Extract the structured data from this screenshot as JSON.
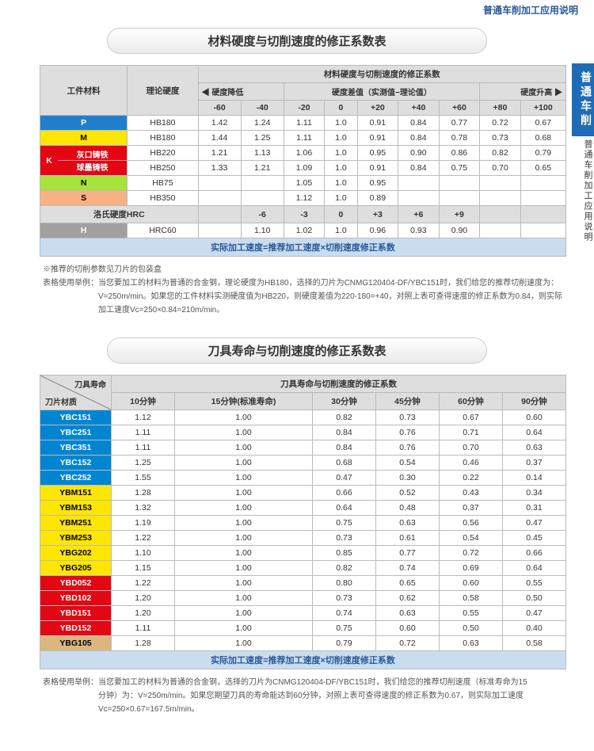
{
  "page": {
    "top_header": "普通车削加工应用说明",
    "side_tab": "普通车削",
    "side_text": "普通车削加工应用说明"
  },
  "table1": {
    "title": "材料硬度与切削速度的修正系数表",
    "header_top": "材料硬度与切削速度的修正系数",
    "col_workpiece": "工件材料",
    "col_hardness": "理论硬度",
    "hardness_low": "硬度降低",
    "hardness_diff": "硬度差值（实测值−理论值）",
    "hardness_high": "硬度升高",
    "cols": [
      "-60",
      "-40",
      "-20",
      "0",
      "+20",
      "+40",
      "+60",
      "+80",
      "+100"
    ],
    "rows": [
      {
        "mat_class": "row-P",
        "mat": "P",
        "hard": "HB180",
        "v": [
          "1.42",
          "1.24",
          "1.11",
          "1.0",
          "0.91",
          "0.84",
          "0.77",
          "0.72",
          "0.67"
        ]
      },
      {
        "mat_class": "row-M",
        "mat": "M",
        "hard": "HB180",
        "v": [
          "1.44",
          "1.25",
          "1.11",
          "1.0",
          "0.91",
          "0.84",
          "0.78",
          "0.73",
          "0.68"
        ]
      },
      {
        "mat_class": "row-K-a",
        "mat": "K",
        "mat_sub": "灰口铸铁",
        "hard": "HB220",
        "v": [
          "1.21",
          "1.13",
          "1.06",
          "1.0",
          "0.95",
          "0.90",
          "0.86",
          "0.82",
          "0.79"
        ]
      },
      {
        "mat_class": "row-K-b",
        "mat": "",
        "mat_sub": "球墨铸铁",
        "hard": "HB250",
        "v": [
          "1.33",
          "1.21",
          "1.09",
          "1.0",
          "0.91",
          "0.84",
          "0.75",
          "0.70",
          "0.65"
        ]
      },
      {
        "mat_class": "row-N",
        "mat": "N",
        "hard": "HB75",
        "v": [
          "",
          "",
          "1.05",
          "1.0",
          "0.95",
          "",
          "",
          "",
          ""
        ]
      },
      {
        "mat_class": "row-S",
        "mat": "S",
        "hard": "HB350",
        "v": [
          "",
          "",
          "1.12",
          "1.0",
          "0.89",
          "",
          "",
          "",
          ""
        ]
      }
    ],
    "hrc_label": "洛氏硬度HRC",
    "hrc_cols": [
      "",
      "-6",
      "-3",
      "0",
      "+3",
      "+6",
      "+9",
      "",
      ""
    ],
    "row_H": {
      "mat": "H",
      "hard": "HRC60",
      "v": [
        "",
        "1.10",
        "1.02",
        "1.0",
        "0.96",
        "0.93",
        "0.90",
        "",
        ""
      ]
    },
    "formula": "实际加工速度=推荐加工速度×切削速度修正系数",
    "note1": "※推荐的切削参数见刀片的包装盒",
    "note2": "表格使用举例：当您要加工的材料为普通的合金钢，理论硬度为HB180，选择的刀片为CNMG120404-DF/YBC151时，我们给您的推荐切削速度为：",
    "note3": "V=250m/min。如果您的工件材料实测硬度值为HB220，则硬度差值为220-180=+40，对照上表可查得速度的修正系数为0.84，则实际",
    "note4": "加工速度Vc=250×0.84=210m/min。"
  },
  "table2": {
    "title": "刀具寿命与切削速度的修正系数表",
    "diag_top": "刀具寿命",
    "diag_bot": "刀片材质",
    "header_top": "刀具寿命与切削速度的修正系数",
    "cols": [
      "10分钟",
      "15分钟(标准寿命)",
      "30分钟",
      "45分钟",
      "60分钟",
      "90分钟"
    ],
    "rows": [
      {
        "cls": "mat-YBC",
        "mat": "YBC151",
        "v": [
          "1.12",
          "1.00",
          "0.82",
          "0.73",
          "0.67",
          "0.60"
        ]
      },
      {
        "cls": "mat-YBC",
        "mat": "YBC251",
        "v": [
          "1.11",
          "1.00",
          "0.84",
          "0.76",
          "0.71",
          "0.64"
        ]
      },
      {
        "cls": "mat-YBC",
        "mat": "YBC351",
        "v": [
          "1.11",
          "1.00",
          "0.84",
          "0.76",
          "0.70",
          "0.63"
        ]
      },
      {
        "cls": "mat-YBC",
        "mat": "YBC152",
        "v": [
          "1.25",
          "1.00",
          "0.68",
          "0.54",
          "0.46",
          "0.37"
        ]
      },
      {
        "cls": "mat-YBC",
        "mat": "YBC252",
        "v": [
          "1.55",
          "1.00",
          "0.47",
          "0.30",
          "0.22",
          "0.14"
        ]
      },
      {
        "cls": "mat-YBM",
        "mat": "YBM151",
        "v": [
          "1.28",
          "1.00",
          "0.66",
          "0.52",
          "0.43",
          "0.34"
        ]
      },
      {
        "cls": "mat-YBM",
        "mat": "YBM153",
        "v": [
          "1.32",
          "1.00",
          "0.64",
          "0.48",
          "0.37",
          "0.31"
        ]
      },
      {
        "cls": "mat-YBM",
        "mat": "YBM251",
        "v": [
          "1.19",
          "1.00",
          "0.75",
          "0.63",
          "0.56",
          "0.47"
        ]
      },
      {
        "cls": "mat-YBM",
        "mat": "YBM253",
        "v": [
          "1.22",
          "1.00",
          "0.73",
          "0.61",
          "0.54",
          "0.45"
        ]
      },
      {
        "cls": "mat-YBM",
        "mat": "YBG202",
        "v": [
          "1.10",
          "1.00",
          "0.85",
          "0.77",
          "0.72",
          "0.66"
        ]
      },
      {
        "cls": "mat-YBM",
        "mat": "YBG205",
        "v": [
          "1.15",
          "1.00",
          "0.82",
          "0.74",
          "0.69",
          "0.64"
        ]
      },
      {
        "cls": "mat-YBD",
        "mat": "YBD052",
        "v": [
          "1.22",
          "1.00",
          "0.80",
          "0.65",
          "0.60",
          "0.55"
        ]
      },
      {
        "cls": "mat-YBD",
        "mat": "YBD102",
        "v": [
          "1.20",
          "1.00",
          "0.73",
          "0.62",
          "0.58",
          "0.50"
        ]
      },
      {
        "cls": "mat-YBD",
        "mat": "YBD151",
        "v": [
          "1.20",
          "1.00",
          "0.74",
          "0.63",
          "0.55",
          "0.47"
        ]
      },
      {
        "cls": "mat-YBD",
        "mat": "YBD152",
        "v": [
          "1.11",
          "1.00",
          "0.75",
          "0.60",
          "0.50",
          "0.40"
        ]
      },
      {
        "cls": "mat-YBG-tan",
        "mat": "YBG105",
        "v": [
          "1.28",
          "1.00",
          "0.79",
          "0.72",
          "0.63",
          "0.58"
        ]
      }
    ],
    "formula": "实际加工速度=推荐加工速度×切削速度修正系数",
    "note1": "表格使用举例：当您要加工的材料为普通的合金钢，选择的刀片为CNMG120404-DF/YBC151时，我们给您的推荐切削速度（标准寿命为15",
    "note2": "分钟）为：V=250m/min。如果您期望刀具的寿命能达到60分钟，对照上表可查得速度的修正系数为0.67，则实际加工速度",
    "note3": "Vc=250×0.67=167.5m/min。"
  },
  "colors": {
    "blue": "#1f7fcc",
    "yellow": "#ffe600",
    "red": "#e30613",
    "green": "#a6e33d",
    "orange": "#f7b183",
    "grey": "#a0a0a0",
    "header_grey": "#dedede",
    "formula_bg": "#c9ddef",
    "tan": "#d9b77d"
  }
}
